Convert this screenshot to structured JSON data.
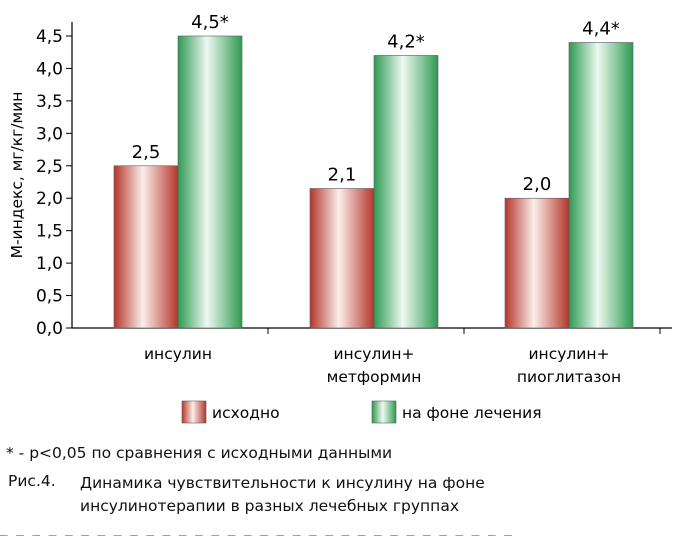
{
  "chart_data": {
    "type": "bar",
    "categories": [
      [
        "инсулин"
      ],
      [
        "инсулин+",
        "метформин"
      ],
      [
        "инсулин+",
        "пиоглитазон"
      ]
    ],
    "series": [
      {
        "name": "исходно",
        "values": [
          2.5,
          2.15,
          2.0
        ],
        "labels": [
          "2,5",
          "2,1",
          "2,0"
        ],
        "color": "#c0504d"
      },
      {
        "name": "на фоне лечения",
        "values": [
          4.5,
          4.2,
          4.4
        ],
        "labels": [
          "4,5*",
          "4,2*",
          "4,4*"
        ],
        "color": "#3fa862"
      }
    ],
    "ylabel": "M-индекс, мг/кг/мин",
    "ylim": [
      0,
      4.5
    ],
    "yticks": [
      "0,0",
      "0,5",
      "1,0",
      "1,5",
      "2,0",
      "2,5",
      "3,0",
      "3,5",
      "4,0",
      "4,5"
    ],
    "grid": false,
    "legend_position": "bottom"
  },
  "footnote": "* - p<0,05 по сравнения с исходными данными",
  "caption": {
    "label": "Рис.4.",
    "text_lines": [
      "Динамика чувствительности к инсулину на фоне",
      "инсулинотерапии в разных лечебных группах"
    ]
  }
}
